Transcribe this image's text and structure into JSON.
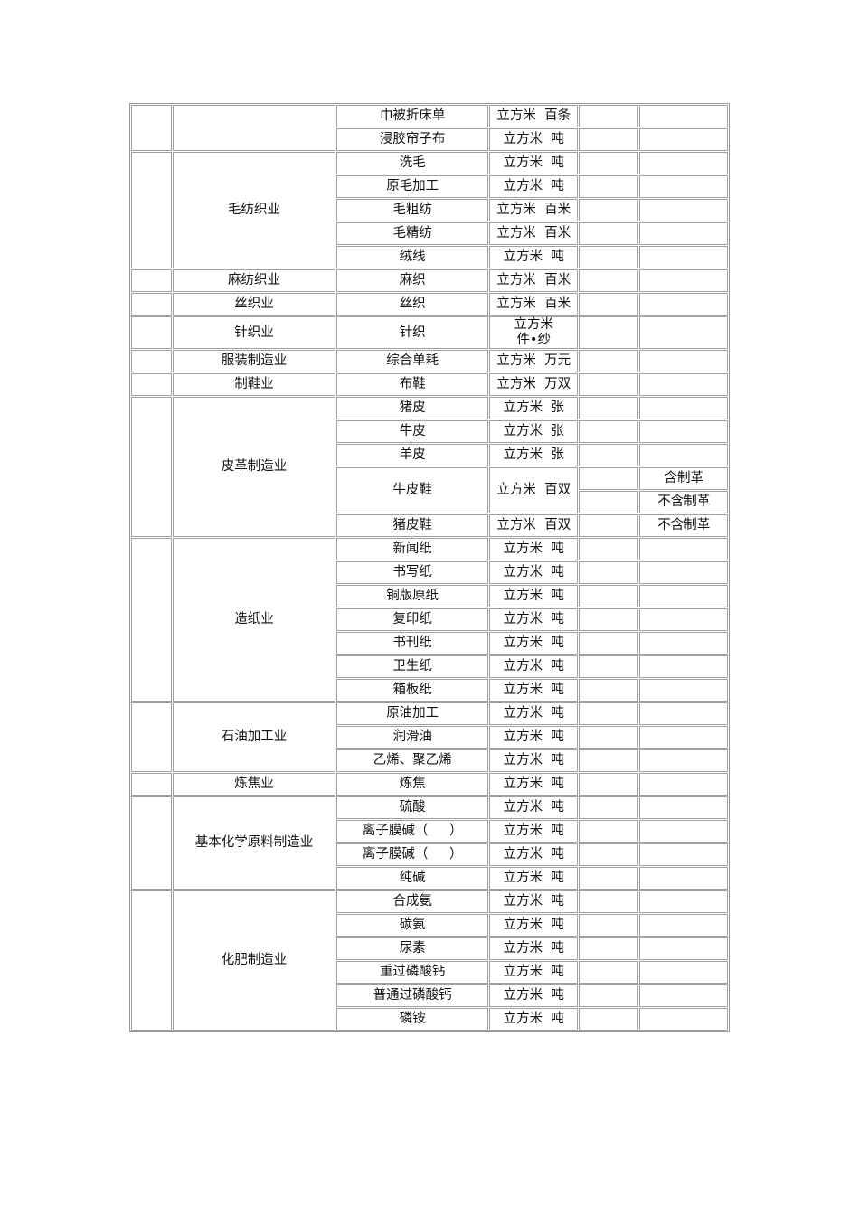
{
  "groups": [
    {
      "industry": "",
      "items": [
        {
          "product": "巾被折床单",
          "unit": "立方米  百条"
        },
        {
          "product": "浸胶帘子布",
          "unit": "立方米  吨"
        }
      ]
    },
    {
      "industry": "毛纺织业",
      "items": [
        {
          "product": "洗毛",
          "unit": "立方米  吨"
        },
        {
          "product": "原毛加工",
          "unit": "立方米  吨"
        },
        {
          "product": "毛粗纺",
          "unit": "立方米  百米"
        },
        {
          "product": "毛精纺",
          "unit": "立方米  百米"
        },
        {
          "product": "绒线",
          "unit": "立方米  吨"
        }
      ]
    },
    {
      "industry": "麻纺织业",
      "items": [
        {
          "product": "麻织",
          "unit": "立方米  百米"
        }
      ]
    },
    {
      "industry": "丝织业",
      "items": [
        {
          "product": "丝织",
          "unit": "立方米  百米"
        }
      ]
    },
    {
      "industry": "针织业",
      "items": [
        {
          "product": "针织",
          "unit": "立方米\n件•纱",
          "tall": true
        }
      ]
    },
    {
      "industry": "服装制造业",
      "items": [
        {
          "product": "综合单耗",
          "unit": "立方米  万元"
        }
      ]
    },
    {
      "industry": "制鞋业",
      "items": [
        {
          "product": "布鞋",
          "unit": "立方米  万双"
        }
      ]
    },
    {
      "industry": "皮革制造业",
      "items": [
        {
          "product": "猪皮",
          "unit": "立方米  张"
        },
        {
          "product": "牛皮",
          "unit": "立方米  张"
        },
        {
          "product": "羊皮",
          "unit": "立方米  张"
        },
        {
          "product": "牛皮鞋",
          "unit": "立方米  百双",
          "notes": [
            "含制革",
            "不含制革"
          ]
        },
        {
          "product": "猪皮鞋",
          "unit": "立方米  百双",
          "note": "不含制革"
        }
      ]
    },
    {
      "industry": "造纸业",
      "items": [
        {
          "product": "新闻纸",
          "unit": "立方米  吨"
        },
        {
          "product": "书写纸",
          "unit": "立方米  吨"
        },
        {
          "product": "铜版原纸",
          "unit": "立方米  吨"
        },
        {
          "product": "复印纸",
          "unit": "立方米  吨"
        },
        {
          "product": "书刊纸",
          "unit": "立方米  吨"
        },
        {
          "product": "卫生纸",
          "unit": "立方米  吨"
        },
        {
          "product": "箱板纸",
          "unit": "立方米  吨"
        }
      ]
    },
    {
      "industry": "石油加工业",
      "items": [
        {
          "product": "原油加工",
          "unit": "立方米  吨"
        },
        {
          "product": "润滑油",
          "unit": "立方米  吨"
        },
        {
          "product": "乙烯、聚乙烯",
          "unit": "立方米  吨"
        }
      ]
    },
    {
      "industry": "炼焦业",
      "items": [
        {
          "product": "炼焦",
          "unit": "立方米  吨"
        }
      ]
    },
    {
      "industry": "基本化学原料制造业",
      "items": [
        {
          "product": "硫酸",
          "unit": "立方米  吨"
        },
        {
          "product": "离子膜碱（　  ）",
          "unit": "立方米  吨"
        },
        {
          "product": "离子膜碱（　  ）",
          "unit": "立方米  吨"
        },
        {
          "product": "纯碱",
          "unit": "立方米  吨"
        }
      ]
    },
    {
      "industry": "化肥制造业",
      "items": [
        {
          "product": "合成氨",
          "unit": "立方米  吨"
        },
        {
          "product": "碳氨",
          "unit": "立方米  吨"
        },
        {
          "product": "尿素",
          "unit": "立方米  吨"
        },
        {
          "product": "重过磷酸钙",
          "unit": "立方米  吨"
        },
        {
          "product": "普通过磷酸钙",
          "unit": "立方米  吨"
        },
        {
          "product": "磷铵",
          "unit": "立方米  吨"
        }
      ]
    }
  ]
}
